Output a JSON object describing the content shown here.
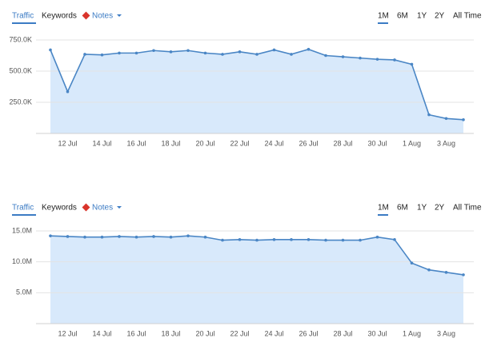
{
  "chart_data": [
    {
      "type": "area",
      "tabs": [
        "Traffic",
        "Keywords",
        "Notes"
      ],
      "ranges": [
        "1M",
        "6M",
        "1Y",
        "2Y",
        "All Time"
      ],
      "categories": [
        null,
        "12 Jul",
        null,
        "14 Jul",
        null,
        "16 Jul",
        null,
        "18 Jul",
        null,
        "20 Jul",
        null,
        "22 Jul",
        null,
        "24 Jul",
        null,
        "26 Jul",
        null,
        "28 Jul",
        null,
        "30 Jul",
        null,
        "1 Aug",
        null,
        "3 Aug",
        null
      ],
      "values": [
        670000,
        335000,
        635000,
        630000,
        645000,
        645000,
        665000,
        655000,
        665000,
        645000,
        635000,
        655000,
        635000,
        670000,
        635000,
        675000,
        625000,
        615000,
        605000,
        595000,
        590000,
        555000,
        150000,
        120000,
        110000
      ],
      "color": "#4a86c5",
      "ylim": [
        0,
        750000
      ],
      "yticks": [
        {
          "value": 250000,
          "label": "250.0K"
        },
        {
          "value": 500000,
          "label": "500.0K"
        },
        {
          "value": 750000,
          "label": "750.0K"
        }
      ],
      "grid": true
    },
    {
      "type": "area",
      "tabs": [
        "Traffic",
        "Keywords",
        "Notes"
      ],
      "ranges": [
        "1M",
        "6M",
        "1Y",
        "2Y",
        "All Time"
      ],
      "categories": [
        null,
        "12 Jul",
        null,
        "14 Jul",
        null,
        "16 Jul",
        null,
        "18 Jul",
        null,
        "20 Jul",
        null,
        "22 Jul",
        null,
        "24 Jul",
        null,
        "26 Jul",
        null,
        "28 Jul",
        null,
        "30 Jul",
        null,
        "1 Aug",
        null,
        "3 Aug",
        null
      ],
      "values": [
        14200000,
        14100000,
        14000000,
        14000000,
        14100000,
        14000000,
        14100000,
        14000000,
        14200000,
        14000000,
        13500000,
        13600000,
        13500000,
        13600000,
        13600000,
        13600000,
        13500000,
        13500000,
        13500000,
        14000000,
        13600000,
        9800000,
        8700000,
        8300000,
        7900000
      ],
      "color": "#4a86c5",
      "ylim": [
        0,
        15000000
      ],
      "yticks": [
        {
          "value": 5000000,
          "label": "5.0M"
        },
        {
          "value": 10000000,
          "label": "10.0M"
        },
        {
          "value": 15000000,
          "label": "15.0M"
        }
      ],
      "grid": true
    }
  ]
}
